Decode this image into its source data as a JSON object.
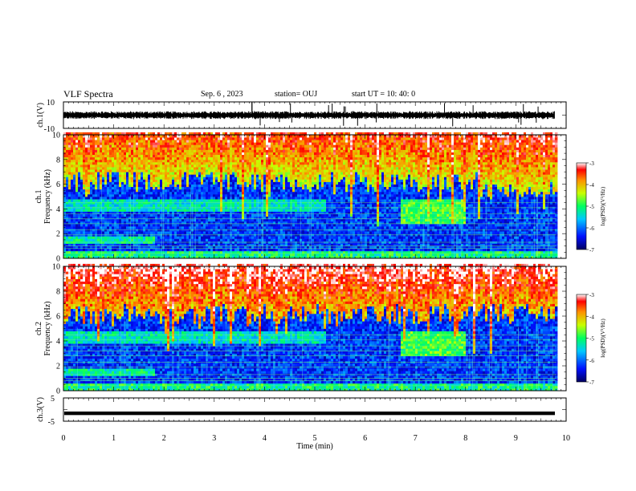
{
  "header": {
    "title": "VLF Spectra",
    "date": "Sep. 6 , 2023",
    "station": "station= OUJ",
    "start": "start UT = 10: 40: 0"
  },
  "chart_data": [
    {
      "type": "line",
      "ylabel": "ch.1(V)",
      "ylim": [
        -10,
        10
      ],
      "yticklabels": [
        "10",
        "-10"
      ],
      "xlim": [
        0,
        10
      ],
      "series_level": 0.0
    },
    {
      "type": "heatmap",
      "ylabel": "ch.1\nFrequency (kHz)",
      "ylim": [
        0,
        10
      ],
      "yticks": [
        0,
        2,
        4,
        6,
        8,
        10
      ],
      "xlim": [
        0,
        10
      ],
      "colorbar": {
        "label": "log(PSD)(V²/Hz)",
        "range": [
          -7,
          -3
        ],
        "ticks": [
          "-3",
          "-4",
          "-5",
          "-6",
          "-7"
        ]
      }
    },
    {
      "type": "heatmap",
      "ylabel": "ch.2\nFrequency (kHz)",
      "ylim": [
        0,
        10
      ],
      "yticks": [
        0,
        2,
        4,
        6,
        8,
        10
      ],
      "xlim": [
        0,
        10
      ],
      "colorbar": {
        "label": "log(PSD)(V²/Hz)",
        "range": [
          -7,
          -3
        ],
        "ticks": [
          "-3",
          "-4",
          "-5",
          "-6",
          "-7"
        ]
      }
    },
    {
      "type": "line",
      "ylabel": "ch.3(V)",
      "ylim": [
        -5,
        5
      ],
      "yticklabels": [
        "5",
        "-5"
      ],
      "xlim": [
        0,
        10
      ],
      "series_level": -1.6,
      "xlabel": "Time (min)",
      "xticks": [
        "0",
        "1",
        "2",
        "3",
        "4",
        "5",
        "6",
        "7",
        "8",
        "9",
        "10"
      ]
    }
  ]
}
